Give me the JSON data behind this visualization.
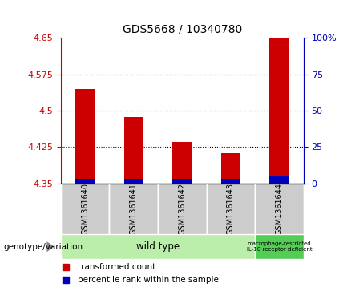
{
  "title": "GDS5668 / 10340780",
  "samples": [
    "GSM1361640",
    "GSM1361641",
    "GSM1361642",
    "GSM1361643",
    "GSM1361644"
  ],
  "transformed_count": [
    4.545,
    4.487,
    4.435,
    4.413,
    4.648
  ],
  "percentile_rank": [
    3.0,
    3.0,
    3.0,
    3.0,
    5.0
  ],
  "ylim_left": [
    4.35,
    4.65
  ],
  "ylim_right": [
    0,
    100
  ],
  "yticks_left": [
    4.35,
    4.425,
    4.5,
    4.575,
    4.65
  ],
  "ytick_labels_left": [
    "4.35",
    "4.425",
    "4.5",
    "4.575",
    "4.65"
  ],
  "yticks_right": [
    0,
    25,
    50,
    75,
    100
  ],
  "ytick_labels_right": [
    "0",
    "25",
    "50",
    "75",
    "100%"
  ],
  "bar_base": 4.35,
  "red_color": "#cc0000",
  "blue_color": "#0000bb",
  "bg_color": "#ffffff",
  "label_area_color": "#cccccc",
  "wt_color": "#bbeeaa",
  "macro_color": "#55cc55",
  "genotype_labels": [
    "wild type",
    "macrophage-restricted\nIL-10 receptor deficient"
  ],
  "legend_red_label": "transformed count",
  "legend_blue_label": "percentile rank within the sample",
  "genotype_label_text": "genotype/variation"
}
